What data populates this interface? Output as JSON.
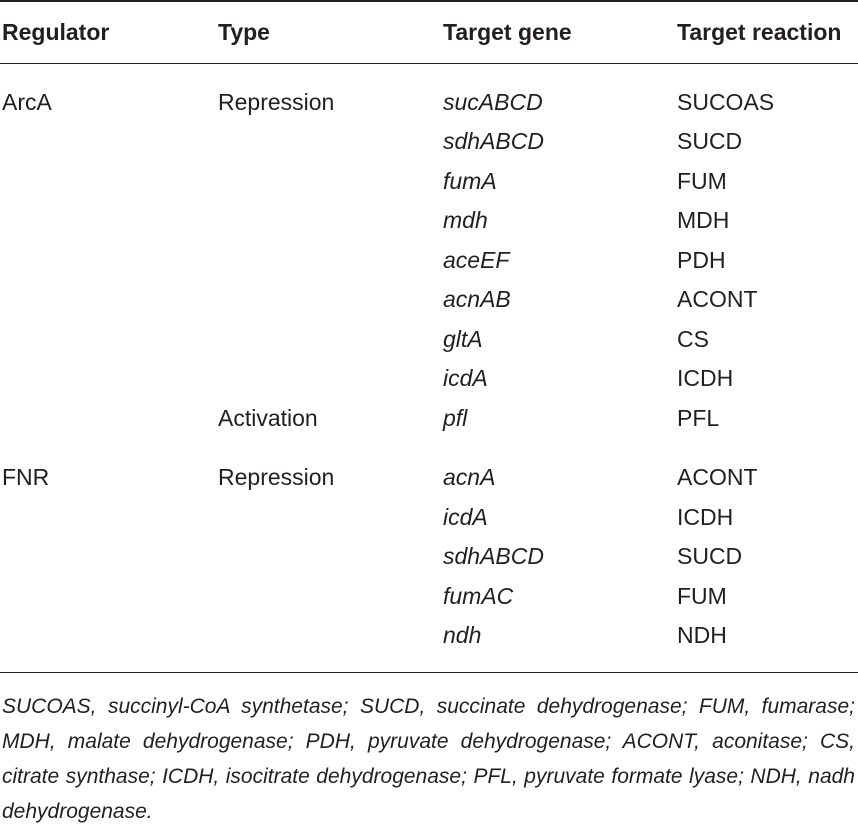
{
  "headers": {
    "regulator": "Regulator",
    "type": "Type",
    "target_gene": "Target gene",
    "target_reaction": "Target reaction"
  },
  "rows": [
    {
      "regulator": "ArcA",
      "type": "Repression",
      "gene": "sucABCD",
      "reaction": "SUCOAS"
    },
    {
      "regulator": "",
      "type": "",
      "gene": "sdhABCD",
      "reaction": "SUCD"
    },
    {
      "regulator": "",
      "type": "",
      "gene": "fumA",
      "reaction": "FUM"
    },
    {
      "regulator": "",
      "type": "",
      "gene": "mdh",
      "reaction": "MDH"
    },
    {
      "regulator": "",
      "type": "",
      "gene": "aceEF",
      "reaction": "PDH"
    },
    {
      "regulator": "",
      "type": "",
      "gene": "acnAB",
      "reaction": "ACONT"
    },
    {
      "regulator": "",
      "type": "",
      "gene": "gltA",
      "reaction": "CS"
    },
    {
      "regulator": "",
      "type": "",
      "gene": "icdA",
      "reaction": "ICDH"
    },
    {
      "regulator": "",
      "type": "Activation",
      "gene": "pfl",
      "reaction": "PFL"
    },
    {
      "regulator": "FNR",
      "type": "Repression",
      "gene": "acnA",
      "reaction": "ACONT"
    },
    {
      "regulator": "",
      "type": "",
      "gene": "icdA",
      "reaction": "ICDH"
    },
    {
      "regulator": "",
      "type": "",
      "gene": "sdhABCD",
      "reaction": "SUCD"
    },
    {
      "regulator": "",
      "type": "",
      "gene": "fumAC",
      "reaction": "FUM"
    },
    {
      "regulator": "",
      "type": "",
      "gene": "ndh",
      "reaction": "NDH"
    }
  ],
  "footnote": "SUCOAS, succinyl-CoA synthetase; SUCD, succinate dehydrogenase; FUM, fumarase; MDH, malate dehydrogenase; PDH, pyruvate dehydrogenase; ACONT, aconitase; CS, citrate synthase; ICDH, isocitrate dehydrogenase; PFL, pyruvate formate lyase; NDH, nadh dehydrogenase."
}
